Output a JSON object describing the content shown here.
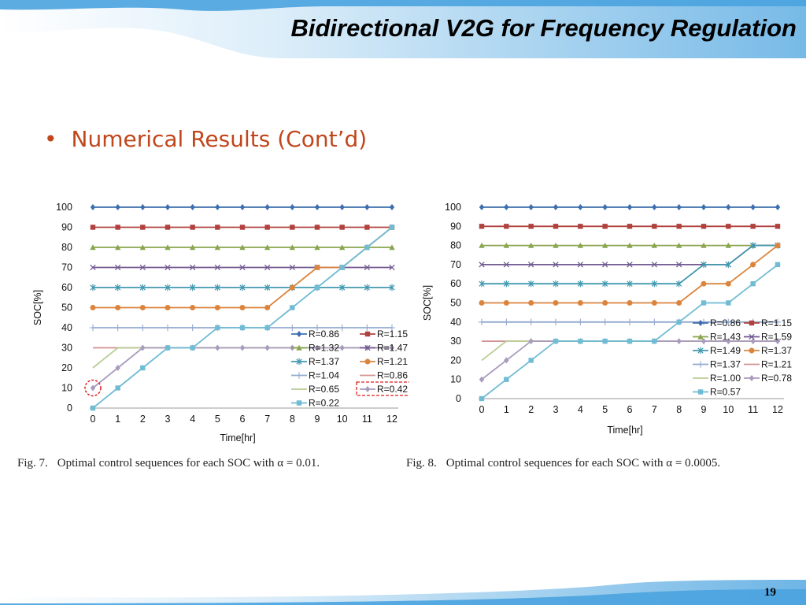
{
  "slide": {
    "title": "Bidirectional V2G for Frequency Regulation",
    "bullet": "Numerical Results (Cont’d)",
    "page_number": "19"
  },
  "captions": [
    {
      "label": "Fig. 7.",
      "text": "Optimal control sequences for each SOC with α = 0.01."
    },
    {
      "label": "Fig. 8.",
      "text": "Optimal control sequences for each SOC with α = 0.0005."
    }
  ],
  "colors": {
    "title": "#000000",
    "bullet": "#c0461b",
    "wave": "#4aa3df"
  },
  "chart_data": [
    {
      "type": "line",
      "title": "",
      "xlabel": "Time[hr]",
      "ylabel": "SOC[%]",
      "xlim": [
        0,
        12
      ],
      "ylim": [
        0,
        100
      ],
      "x": [
        0,
        1,
        2,
        3,
        4,
        5,
        6,
        7,
        8,
        9,
        10,
        11,
        12
      ],
      "legend_position": "bottom-right",
      "highlight": {
        "series": "R=0.42",
        "point_index": 0
      },
      "series": [
        {
          "name": "R=0.86",
          "color": "#3d6fae",
          "marker": "diamond",
          "values": [
            100,
            100,
            100,
            100,
            100,
            100,
            100,
            100,
            100,
            100,
            100,
            100,
            100
          ]
        },
        {
          "name": "R=1.15",
          "color": "#b0413e",
          "marker": "square",
          "values": [
            90,
            90,
            90,
            90,
            90,
            90,
            90,
            90,
            90,
            90,
            90,
            90,
            90
          ]
        },
        {
          "name": "R=1.32",
          "color": "#89a54e",
          "marker": "triangle",
          "values": [
            80,
            80,
            80,
            80,
            80,
            80,
            80,
            80,
            80,
            80,
            80,
            80,
            80
          ]
        },
        {
          "name": "R=1.47",
          "color": "#71588f",
          "marker": "x",
          "values": [
            70,
            70,
            70,
            70,
            70,
            70,
            70,
            70,
            70,
            70,
            70,
            70,
            70
          ]
        },
        {
          "name": "R=1.37",
          "color": "#4198af",
          "marker": "star",
          "values": [
            60,
            60,
            60,
            60,
            60,
            60,
            60,
            60,
            60,
            60,
            60,
            60,
            60
          ]
        },
        {
          "name": "R=1.21",
          "color": "#db843d",
          "marker": "circle",
          "values": [
            50,
            50,
            50,
            50,
            50,
            50,
            50,
            50,
            60,
            70,
            70,
            80,
            90
          ]
        },
        {
          "name": "R=1.04",
          "color": "#93a9cf",
          "marker": "plus",
          "values": [
            40,
            40,
            40,
            40,
            40,
            40,
            40,
            40,
            40,
            40,
            40,
            40,
            40
          ]
        },
        {
          "name": "R=0.86",
          "color": "#d19392",
          "marker": "line",
          "values": [
            30,
            30,
            30,
            30,
            30,
            30,
            30,
            30,
            30,
            30,
            30,
            30,
            30
          ]
        },
        {
          "name": "R=0.65",
          "color": "#b9cd96",
          "marker": "line",
          "values": [
            20,
            30,
            30,
            30,
            30,
            30,
            30,
            30,
            30,
            30,
            30,
            30,
            30
          ]
        },
        {
          "name": "R=0.42",
          "color": "#a99bbd",
          "marker": "diamond",
          "values": [
            10,
            20,
            30,
            30,
            30,
            30,
            30,
            30,
            30,
            30,
            30,
            30,
            30
          ]
        },
        {
          "name": "R=0.22",
          "color": "#6fbcd4",
          "marker": "square",
          "values": [
            0,
            10,
            20,
            30,
            30,
            40,
            40,
            40,
            50,
            60,
            70,
            80,
            90
          ]
        }
      ]
    },
    {
      "type": "line",
      "title": "",
      "xlabel": "Time[hr]",
      "ylabel": "SOC[%]",
      "xlim": [
        0,
        12
      ],
      "ylim": [
        0,
        100
      ],
      "x": [
        0,
        1,
        2,
        3,
        4,
        5,
        6,
        7,
        8,
        9,
        10,
        11,
        12
      ],
      "legend_position": "right",
      "series": [
        {
          "name": "R=0.86",
          "color": "#3d6fae",
          "marker": "diamond",
          "values": [
            100,
            100,
            100,
            100,
            100,
            100,
            100,
            100,
            100,
            100,
            100,
            100,
            100
          ]
        },
        {
          "name": "R=1.15",
          "color": "#b0413e",
          "marker": "square",
          "values": [
            90,
            90,
            90,
            90,
            90,
            90,
            90,
            90,
            90,
            90,
            90,
            90,
            90
          ]
        },
        {
          "name": "R=1.43",
          "color": "#89a54e",
          "marker": "triangle",
          "values": [
            80,
            80,
            80,
            80,
            80,
            80,
            80,
            80,
            80,
            80,
            80,
            80,
            80
          ]
        },
        {
          "name": "R=1.59",
          "color": "#71588f",
          "marker": "x",
          "values": [
            70,
            70,
            70,
            70,
            70,
            70,
            70,
            70,
            70,
            70,
            70,
            80,
            80
          ]
        },
        {
          "name": "R=1.49",
          "color": "#4198af",
          "marker": "star",
          "values": [
            60,
            60,
            60,
            60,
            60,
            60,
            60,
            60,
            60,
            70,
            70,
            80,
            80
          ]
        },
        {
          "name": "R=1.37",
          "color": "#db843d",
          "marker": "circle",
          "values": [
            50,
            50,
            50,
            50,
            50,
            50,
            50,
            50,
            50,
            60,
            60,
            70,
            80
          ]
        },
        {
          "name": "R=1.37",
          "color": "#93a9cf",
          "marker": "plus",
          "values": [
            40,
            40,
            40,
            40,
            40,
            40,
            40,
            40,
            40,
            40,
            40,
            40,
            40
          ]
        },
        {
          "name": "R=1.21",
          "color": "#d19392",
          "marker": "line",
          "values": [
            30,
            30,
            30,
            30,
            30,
            30,
            30,
            30,
            30,
            30,
            30,
            30,
            30
          ]
        },
        {
          "name": "R=1.00",
          "color": "#b9cd96",
          "marker": "line",
          "values": [
            20,
            30,
            30,
            30,
            30,
            30,
            30,
            30,
            30,
            30,
            30,
            30,
            30
          ]
        },
        {
          "name": "R=0.78",
          "color": "#a99bbd",
          "marker": "diamond",
          "values": [
            10,
            20,
            30,
            30,
            30,
            30,
            30,
            30,
            30,
            30,
            30,
            30,
            30
          ]
        },
        {
          "name": "R=0.57",
          "color": "#6fbcd4",
          "marker": "square",
          "values": [
            0,
            10,
            20,
            30,
            30,
            30,
            30,
            30,
            40,
            50,
            50,
            60,
            70
          ]
        }
      ]
    }
  ]
}
